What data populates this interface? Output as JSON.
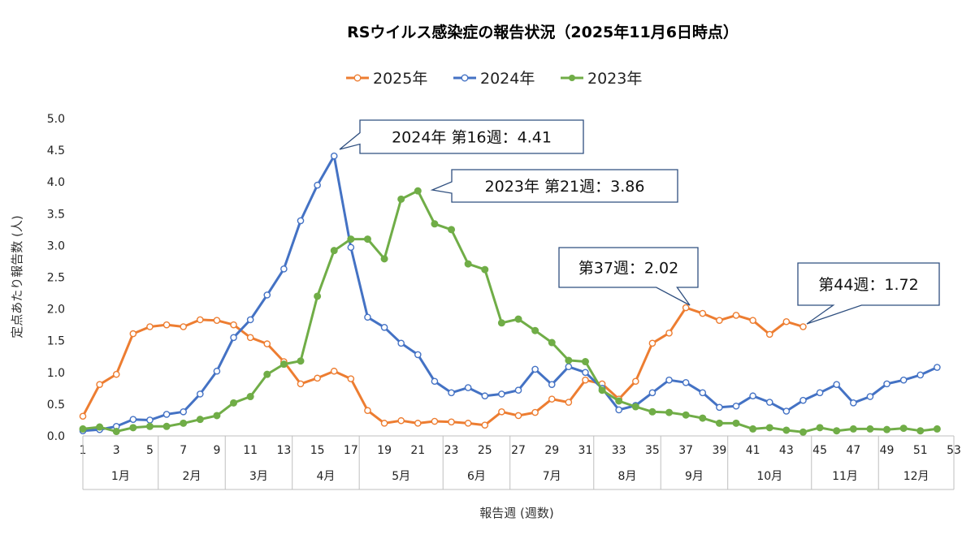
{
  "chart_data": {
    "type": "line",
    "title": "RSウイルス感染症の報告状況（2025年11月6日時点）",
    "xlabel": "報告週 (週数)",
    "ylabel": "定点あたり報告数 (人)",
    "ylim": [
      0,
      5
    ],
    "yticks": [
      "0.0",
      "0.5",
      "1.0",
      "1.5",
      "2.0",
      "2.5",
      "3.0",
      "3.5",
      "4.0",
      "4.5",
      "5.0"
    ],
    "xlim": [
      1,
      53
    ],
    "xticks": [
      "1",
      "3",
      "5",
      "7",
      "9",
      "11",
      "13",
      "15",
      "17",
      "19",
      "21",
      "23",
      "25",
      "27",
      "29",
      "31",
      "33",
      "35",
      "37",
      "39",
      "41",
      "43",
      "45",
      "47",
      "49",
      "51",
      "53"
    ],
    "legend_position": "top-center",
    "grid": false,
    "months": [
      {
        "label": "1月",
        "start": 1,
        "end": 5
      },
      {
        "label": "2月",
        "start": 6,
        "end": 9
      },
      {
        "label": "3月",
        "start": 10,
        "end": 13
      },
      {
        "label": "4月",
        "start": 14,
        "end": 17
      },
      {
        "label": "5月",
        "start": 18,
        "end": 22
      },
      {
        "label": "6月",
        "start": 23,
        "end": 26
      },
      {
        "label": "7月",
        "start": 27,
        "end": 31
      },
      {
        "label": "8月",
        "start": 32,
        "end": 35
      },
      {
        "label": "9月",
        "start": 36,
        "end": 39
      },
      {
        "label": "10月",
        "start": 40,
        "end": 44
      },
      {
        "label": "11月",
        "start": 45,
        "end": 48
      },
      {
        "label": "12月",
        "start": 49,
        "end": 53
      }
    ],
    "series": [
      {
        "name": "2025年",
        "color": "#ED7D31",
        "marker": "open",
        "x": [
          1,
          2,
          3,
          4,
          5,
          6,
          7,
          8,
          9,
          10,
          11,
          12,
          13,
          14,
          15,
          16,
          17,
          18,
          19,
          20,
          21,
          22,
          23,
          24,
          25,
          26,
          27,
          28,
          29,
          30,
          31,
          32,
          33,
          34,
          35,
          36,
          37,
          38,
          39,
          40,
          41,
          42,
          43,
          44
        ],
        "values": [
          0.31,
          0.81,
          0.97,
          1.61,
          1.72,
          1.75,
          1.72,
          1.83,
          1.82,
          1.75,
          1.55,
          1.45,
          1.17,
          0.82,
          0.91,
          1.02,
          0.9,
          0.4,
          0.2,
          0.24,
          0.2,
          0.23,
          0.22,
          0.2,
          0.17,
          0.38,
          0.32,
          0.37,
          0.58,
          0.53,
          0.88,
          0.82,
          0.58,
          0.86,
          1.46,
          1.62,
          2.02,
          1.93,
          1.82,
          1.9,
          1.82,
          1.6,
          1.8,
          1.72
        ]
      },
      {
        "name": "2024年",
        "color": "#4472C4",
        "marker": "open",
        "x": [
          1,
          2,
          3,
          4,
          5,
          6,
          7,
          8,
          9,
          10,
          11,
          12,
          13,
          14,
          15,
          16,
          17,
          18,
          19,
          20,
          21,
          22,
          23,
          24,
          25,
          26,
          27,
          28,
          29,
          30,
          31,
          32,
          33,
          34,
          35,
          36,
          37,
          38,
          39,
          40,
          41,
          42,
          43,
          44,
          45,
          46,
          47,
          48,
          49,
          50,
          51,
          52
        ],
        "values": [
          0.08,
          0.1,
          0.15,
          0.26,
          0.25,
          0.34,
          0.38,
          0.66,
          1.02,
          1.55,
          1.83,
          2.22,
          2.63,
          3.39,
          3.95,
          4.41,
          2.97,
          1.87,
          1.71,
          1.46,
          1.28,
          0.86,
          0.68,
          0.76,
          0.63,
          0.66,
          0.72,
          1.05,
          0.81,
          1.09,
          1.0,
          0.75,
          0.41,
          0.48,
          0.68,
          0.88,
          0.84,
          0.68,
          0.45,
          0.47,
          0.63,
          0.53,
          0.39,
          0.56,
          0.68,
          0.81,
          0.52,
          0.62,
          0.82,
          0.88,
          0.96,
          1.08
        ]
      },
      {
        "name": "2023年",
        "color": "#70AD47",
        "marker": "filled",
        "x": [
          1,
          2,
          3,
          4,
          5,
          6,
          7,
          8,
          9,
          10,
          11,
          12,
          13,
          14,
          15,
          16,
          17,
          18,
          19,
          20,
          21,
          22,
          23,
          24,
          25,
          26,
          27,
          28,
          29,
          30,
          31,
          32,
          33,
          34,
          35,
          36,
          37,
          38,
          39,
          40,
          41,
          42,
          43,
          44,
          45,
          46,
          47,
          48,
          49,
          50,
          51,
          52
        ],
        "values": [
          0.11,
          0.14,
          0.07,
          0.13,
          0.15,
          0.15,
          0.2,
          0.26,
          0.32,
          0.52,
          0.62,
          0.97,
          1.13,
          1.18,
          2.2,
          2.92,
          3.1,
          3.1,
          2.79,
          3.73,
          3.86,
          3.34,
          3.25,
          2.71,
          2.62,
          1.78,
          1.84,
          1.66,
          1.47,
          1.19,
          1.17,
          0.72,
          0.55,
          0.46,
          0.38,
          0.37,
          0.33,
          0.28,
          0.2,
          0.2,
          0.11,
          0.13,
          0.09,
          0.06,
          0.13,
          0.08,
          0.11,
          0.11,
          0.1,
          0.12,
          0.08,
          0.11
        ]
      }
    ],
    "annotations": [
      {
        "text": "2024年 第16週：4.41",
        "series": "2024年",
        "week": 16,
        "value": 4.41
      },
      {
        "text": "2023年 第21週：3.86",
        "series": "2023年",
        "week": 21,
        "value": 3.86
      },
      {
        "text": "第37週：2.02",
        "series": "2025年",
        "week": 37,
        "value": 2.02
      },
      {
        "text": "第44週：1.72",
        "series": "2025年",
        "week": 44,
        "value": 1.72
      }
    ]
  }
}
